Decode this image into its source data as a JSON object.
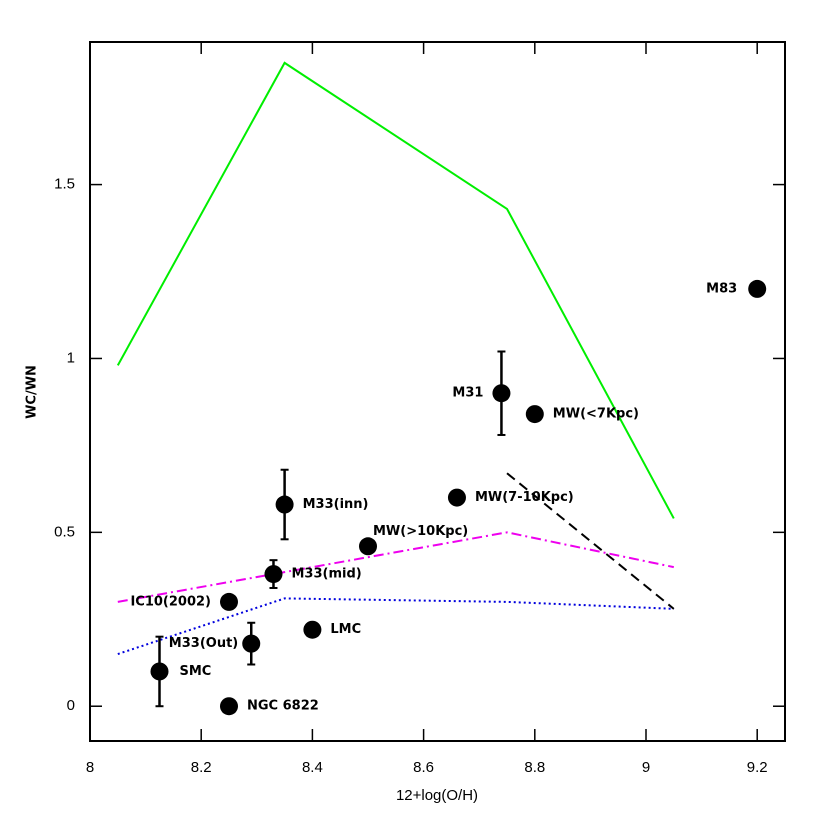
{
  "chart_data": {
    "type": "scatter",
    "xlabel": "12+log(O/H)",
    "ylabel": "WC/WN",
    "xlim": [
      8,
      9.25
    ],
    "ylim": [
      -0.1,
      1.91
    ],
    "xticks": [
      8,
      8.2,
      8.4,
      8.6,
      8.8,
      9,
      9.2
    ],
    "yticks": [
      0,
      0.5,
      1,
      1.5
    ],
    "points": {
      "color": "#000000",
      "labels": [
        "SMC",
        "NGC 6822",
        "M33(Out)",
        "IC10(2002)",
        "M33(mid)",
        "M33(inn)",
        "LMC",
        "MW(>10Kpc)",
        "MW(7-10Kpc)",
        "M31",
        "MW(<7Kpc)",
        "M83"
      ],
      "x": [
        8.125,
        8.25,
        8.29,
        8.25,
        8.33,
        8.35,
        8.4,
        8.5,
        8.66,
        8.74,
        8.8,
        9.2
      ],
      "y": [
        0.1,
        0,
        0.18,
        0.3,
        0.38,
        0.58,
        0.22,
        0.46,
        0.6,
        0.9,
        0.84,
        1.2
      ],
      "yerr": [
        0.1,
        null,
        0.06,
        null,
        0.04,
        0.1,
        null,
        null,
        null,
        0.12,
        null,
        null
      ]
    },
    "lines": [
      {
        "color": "#00ee00",
        "dash": "solid",
        "x": [
          8.05,
          8.35,
          8.75,
          9.05
        ],
        "y": [
          0.98,
          1.85,
          1.43,
          0.54
        ]
      },
      {
        "color": "#ee00ee",
        "dash": "dashdot",
        "x": [
          8.05,
          8.75,
          9.05
        ],
        "y": [
          0.3,
          0.5,
          0.4
        ]
      },
      {
        "color": "#0000dd",
        "dash": "dotted",
        "x": [
          8.05,
          8.35,
          8.75,
          9.05
        ],
        "y": [
          0.15,
          0.31,
          0.3,
          0.28
        ]
      },
      {
        "color": "#000000",
        "dash": "dashed",
        "x": [
          8.75,
          9.05
        ],
        "y": [
          0.67,
          0.28
        ]
      }
    ]
  }
}
